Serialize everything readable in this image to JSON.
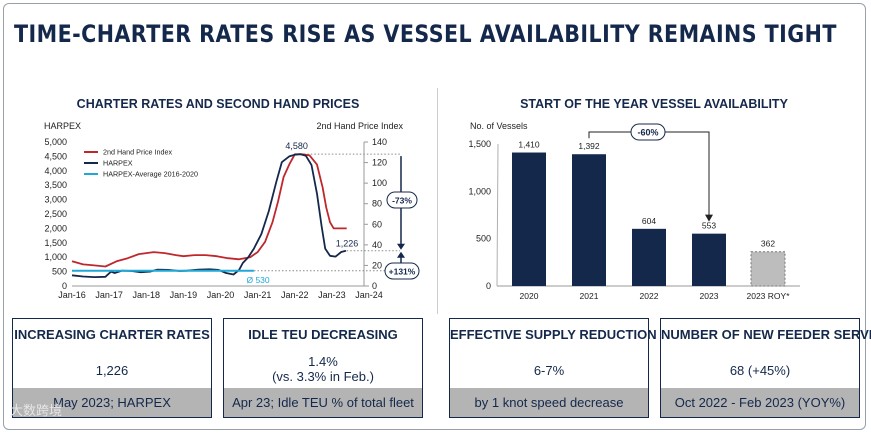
{
  "title": "TIME-CHARTER RATES RISE AS VESSEL AVAILABILITY REMAINS TIGHT",
  "colors": {
    "navy": "#14284b",
    "red": "#c0272d",
    "cyan": "#1fa8d8",
    "gray_bar": "#bdbdbd"
  },
  "chart_data": [
    {
      "type": "line",
      "title": "CHARTER RATES AND SECOND HAND PRICES",
      "ylabel_left": "HARPEX",
      "ylabel_right": "2nd Hand Price Index",
      "x_ticks": [
        "Jan-16",
        "Jan-17",
        "Jan-18",
        "Jan-19",
        "Jan-20",
        "Jan-21",
        "Jan-22",
        "Jan-23",
        "Jan-24"
      ],
      "y_left_ticks": [
        "5,000",
        "4,500",
        "4,000",
        "3,500",
        "3,000",
        "2,500",
        "2,000",
        "1,500",
        "1,000",
        "500",
        "0"
      ],
      "y_right_ticks": [
        "140",
        "120",
        "100",
        "80",
        "60",
        "40",
        "20",
        "0"
      ],
      "ylim_left": [
        0,
        5000
      ],
      "ylim_right": [
        0,
        140
      ],
      "legend": [
        "2nd Hand Price Index",
        "HARPEX",
        "HARPEX-Average 2016-2020"
      ],
      "series": [
        {
          "name": "2nd Hand Price Index",
          "axis": "right",
          "color": "#c0272d",
          "points": [
            [
              2016.0,
              24
            ],
            [
              2016.3,
              21
            ],
            [
              2016.6,
              20
            ],
            [
              2016.9,
              19
            ],
            [
              2017.2,
              24
            ],
            [
              2017.5,
              27
            ],
            [
              2017.8,
              31
            ],
            [
              2018.0,
              32
            ],
            [
              2018.2,
              33
            ],
            [
              2018.5,
              32
            ],
            [
              2018.8,
              30
            ],
            [
              2019.0,
              29
            ],
            [
              2019.3,
              30
            ],
            [
              2019.6,
              30
            ],
            [
              2019.9,
              29
            ],
            [
              2020.2,
              27
            ],
            [
              2020.5,
              26
            ],
            [
              2020.8,
              28
            ],
            [
              2021.0,
              33
            ],
            [
              2021.2,
              43
            ],
            [
              2021.4,
              62
            ],
            [
              2021.55,
              82
            ],
            [
              2021.7,
              106
            ],
            [
              2021.85,
              118
            ],
            [
              2022.0,
              128
            ],
            [
              2022.2,
              128
            ],
            [
              2022.4,
              127
            ],
            [
              2022.6,
              118
            ],
            [
              2022.75,
              96
            ],
            [
              2022.85,
              76
            ],
            [
              2022.95,
              62
            ],
            [
              2023.05,
              56
            ],
            [
              2023.2,
              56
            ],
            [
              2023.4,
              56
            ]
          ]
        },
        {
          "name": "HARPEX",
          "axis": "left",
          "color": "#14284b",
          "points": [
            [
              2016.0,
              370
            ],
            [
              2016.3,
              330
            ],
            [
              2016.6,
              310
            ],
            [
              2016.9,
              320
            ],
            [
              2017.05,
              500
            ],
            [
              2017.15,
              450
            ],
            [
              2017.35,
              530
            ],
            [
              2017.6,
              520
            ],
            [
              2017.85,
              480
            ],
            [
              2018.1,
              500
            ],
            [
              2018.3,
              570
            ],
            [
              2018.6,
              560
            ],
            [
              2018.9,
              520
            ],
            [
              2019.1,
              530
            ],
            [
              2019.4,
              570
            ],
            [
              2019.7,
              580
            ],
            [
              2019.95,
              560
            ],
            [
              2020.15,
              450
            ],
            [
              2020.35,
              400
            ],
            [
              2020.5,
              560
            ],
            [
              2020.6,
              800
            ],
            [
              2020.75,
              1000
            ],
            [
              2020.9,
              1300
            ],
            [
              2021.1,
              1800
            ],
            [
              2021.3,
              2600
            ],
            [
              2021.5,
              3600
            ],
            [
              2021.65,
              4300
            ],
            [
              2021.85,
              4500
            ],
            [
              2022.0,
              4560
            ],
            [
              2022.15,
              4580
            ],
            [
              2022.3,
              4520
            ],
            [
              2022.45,
              4200
            ],
            [
              2022.6,
              3200
            ],
            [
              2022.72,
              2100
            ],
            [
              2022.82,
              1300
            ],
            [
              2022.95,
              1050
            ],
            [
              2023.1,
              1020
            ],
            [
              2023.25,
              1180
            ],
            [
              2023.38,
              1226
            ]
          ]
        },
        {
          "name": "HARPEX-Average 2016-2020",
          "axis": "left",
          "color": "#1fa8d8",
          "points": [
            [
              2016.0,
              530
            ],
            [
              2020.9,
              530
            ]
          ]
        }
      ],
      "annotations": [
        "4,580",
        "1,226",
        "Ø 530",
        "-73%",
        "+131%"
      ]
    },
    {
      "type": "bar",
      "title": "START OF THE YEAR VESSEL AVAILABILITY",
      "ylabel": "No. of Vessels",
      "categories": [
        "2020",
        "2021",
        "2022",
        "2023",
        "2023 ROY*"
      ],
      "values": [
        1410,
        1392,
        604,
        553,
        362
      ],
      "value_labels": [
        "1,410",
        "1,392",
        "604",
        "553",
        "362"
      ],
      "y_ticks": [
        "1,500",
        "1,000",
        "500",
        "0"
      ],
      "ylim": [
        0,
        1500
      ],
      "annotations": [
        "-60%"
      ]
    }
  ],
  "cards": [
    {
      "title": "INCREASING CHARTER RATES",
      "value": "1,226",
      "footer": "May 2023; HARPEX"
    },
    {
      "title": "IDLE TEU DECREASING",
      "value": "1.4%",
      "value2": "(vs. 3.3% in Feb.)",
      "footer": "Apr 23; Idle TEU % of total fleet"
    },
    {
      "title": "EFFECTIVE SUPPLY REDUCTION",
      "value": "6-7%",
      "footer": "by 1 knot speed decrease"
    },
    {
      "title": "NUMBER OF NEW FEEDER SERVICES",
      "value": "68 (+45%)",
      "footer": "Oct 2022 - Feb 2023 (YOY%)"
    }
  ],
  "watermark": "大数跨境"
}
